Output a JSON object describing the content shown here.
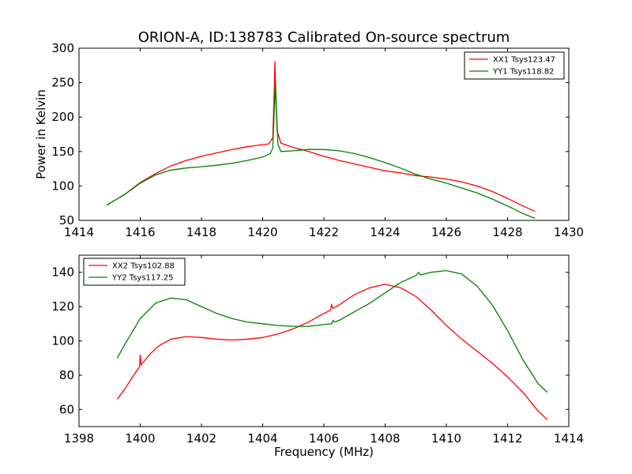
{
  "title": "ORION-A, ID:138783 Calibrated On-source spectrum",
  "chart_data": [
    {
      "type": "line",
      "title": "ORION-A, ID:138783 Calibrated On-source spectrum",
      "xlabel": "",
      "ylabel": "Power in Kelvin",
      "xlim": [
        1414,
        1430
      ],
      "ylim": [
        50,
        300
      ],
      "xticks": [
        1414,
        1416,
        1418,
        1420,
        1422,
        1424,
        1426,
        1428,
        1430
      ],
      "yticks": [
        50,
        100,
        150,
        200,
        250,
        300
      ],
      "grid": false,
      "legend_position": "top-right",
      "series": [
        {
          "name": "XX1 Tsys123.47",
          "color": "#ff0000",
          "points": [
            [
              1414.9,
              72
            ],
            [
              1415.5,
              88
            ],
            [
              1416.0,
              105
            ],
            [
              1416.5,
              118
            ],
            [
              1417.0,
              129
            ],
            [
              1417.5,
              137
            ],
            [
              1418.0,
              143
            ],
            [
              1418.5,
              148
            ],
            [
              1419.0,
              153
            ],
            [
              1419.5,
              157
            ],
            [
              1420.0,
              160
            ],
            [
              1420.2,
              161
            ],
            [
              1420.33,
              170
            ],
            [
              1420.38,
              240
            ],
            [
              1420.4,
              281
            ],
            [
              1420.42,
              240
            ],
            [
              1420.47,
              180
            ],
            [
              1420.6,
              162
            ],
            [
              1421.0,
              156
            ],
            [
              1421.5,
              150
            ],
            [
              1422.0,
              143
            ],
            [
              1422.5,
              137
            ],
            [
              1423.0,
              132
            ],
            [
              1423.5,
              127
            ],
            [
              1424.0,
              122
            ],
            [
              1424.5,
              119
            ],
            [
              1425.0,
              115
            ],
            [
              1425.5,
              113
            ],
            [
              1426.0,
              110
            ],
            [
              1426.5,
              106
            ],
            [
              1427.0,
              100
            ],
            [
              1427.5,
              92
            ],
            [
              1428.0,
              82
            ],
            [
              1428.5,
              71
            ],
            [
              1428.9,
              63
            ]
          ]
        },
        {
          "name": "YY1 Tsys118.82",
          "color": "#008000",
          "points": [
            [
              1414.9,
              72
            ],
            [
              1415.5,
              88
            ],
            [
              1416.0,
              104
            ],
            [
              1416.5,
              116
            ],
            [
              1417.0,
              123
            ],
            [
              1417.5,
              126
            ],
            [
              1418.0,
              128
            ],
            [
              1418.5,
              130
            ],
            [
              1419.0,
              133
            ],
            [
              1419.5,
              137
            ],
            [
              1420.0,
              142
            ],
            [
              1420.25,
              147
            ],
            [
              1420.33,
              155
            ],
            [
              1420.38,
              210
            ],
            [
              1420.42,
              250
            ],
            [
              1420.46,
              200
            ],
            [
              1420.5,
              160
            ],
            [
              1420.6,
              150
            ],
            [
              1421.0,
              151
            ],
            [
              1421.5,
              153
            ],
            [
              1422.0,
              153
            ],
            [
              1422.5,
              151
            ],
            [
              1423.0,
              147
            ],
            [
              1423.5,
              141
            ],
            [
              1424.0,
              134
            ],
            [
              1424.5,
              126
            ],
            [
              1425.0,
              117
            ],
            [
              1425.5,
              110
            ],
            [
              1426.0,
              104
            ],
            [
              1426.5,
              97
            ],
            [
              1427.0,
              90
            ],
            [
              1427.5,
              81
            ],
            [
              1428.0,
              71
            ],
            [
              1428.5,
              60
            ],
            [
              1428.9,
              53
            ]
          ]
        }
      ]
    },
    {
      "type": "line",
      "title": "",
      "xlabel": "Frequency (MHz)",
      "ylabel": "",
      "xlim": [
        1398,
        1414
      ],
      "ylim": [
        50,
        150
      ],
      "xticks": [
        1398,
        1400,
        1402,
        1404,
        1406,
        1408,
        1410,
        1412,
        1414
      ],
      "yticks": [
        60,
        80,
        100,
        120,
        140
      ],
      "grid": false,
      "legend_position": "top-left",
      "series": [
        {
          "name": "XX2 Tsys102.88",
          "color": "#ff0000",
          "points": [
            [
              1399.25,
              66
            ],
            [
              1399.5,
              72
            ],
            [
              1399.75,
              79
            ],
            [
              1399.98,
              85
            ],
            [
              1400.0,
              92
            ],
            [
              1400.03,
              86
            ],
            [
              1400.3,
              92
            ],
            [
              1400.6,
              97
            ],
            [
              1401.0,
              101
            ],
            [
              1401.5,
              102.5
            ],
            [
              1402.0,
              102
            ],
            [
              1402.5,
              101
            ],
            [
              1403.0,
              100.5
            ],
            [
              1403.5,
              101
            ],
            [
              1404.0,
              102
            ],
            [
              1404.5,
              104
            ],
            [
              1405.0,
              107
            ],
            [
              1405.5,
              111
            ],
            [
              1406.0,
              116
            ],
            [
              1406.22,
              118
            ],
            [
              1406.25,
              121
            ],
            [
              1406.3,
              119
            ],
            [
              1406.5,
              121
            ],
            [
              1407.0,
              127
            ],
            [
              1407.5,
              131
            ],
            [
              1408.0,
              133
            ],
            [
              1408.5,
              131
            ],
            [
              1409.0,
              126
            ],
            [
              1409.5,
              118
            ],
            [
              1410.0,
              109
            ],
            [
              1410.5,
              101
            ],
            [
              1411.0,
              94
            ],
            [
              1411.5,
              87
            ],
            [
              1412.0,
              79
            ],
            [
              1412.5,
              70
            ],
            [
              1413.0,
              59
            ],
            [
              1413.3,
              54
            ]
          ]
        },
        {
          "name": "YY2 Tsys117.25",
          "color": "#008000",
          "points": [
            [
              1399.25,
              90
            ],
            [
              1399.5,
              98
            ],
            [
              1400.0,
              113
            ],
            [
              1400.5,
              122
            ],
            [
              1401.0,
              125
            ],
            [
              1401.5,
              124
            ],
            [
              1402.0,
              120
            ],
            [
              1402.5,
              116
            ],
            [
              1403.0,
              113
            ],
            [
              1403.5,
              111
            ],
            [
              1404.0,
              110
            ],
            [
              1404.5,
              109
            ],
            [
              1405.0,
              108.5
            ],
            [
              1405.5,
              108.5
            ],
            [
              1406.0,
              109.5
            ],
            [
              1406.25,
              110
            ],
            [
              1406.3,
              112
            ],
            [
              1406.35,
              111
            ],
            [
              1406.5,
              112
            ],
            [
              1407.0,
              117
            ],
            [
              1407.5,
              122
            ],
            [
              1408.0,
              128
            ],
            [
              1408.5,
              134
            ],
            [
              1409.0,
              138
            ],
            [
              1409.1,
              140
            ],
            [
              1409.15,
              138.5
            ],
            [
              1409.5,
              140
            ],
            [
              1410.0,
              141
            ],
            [
              1410.5,
              139
            ],
            [
              1411.0,
              132
            ],
            [
              1411.5,
              121
            ],
            [
              1412.0,
              106
            ],
            [
              1412.5,
              89
            ],
            [
              1413.0,
              75
            ],
            [
              1413.3,
              70
            ]
          ]
        }
      ]
    }
  ]
}
